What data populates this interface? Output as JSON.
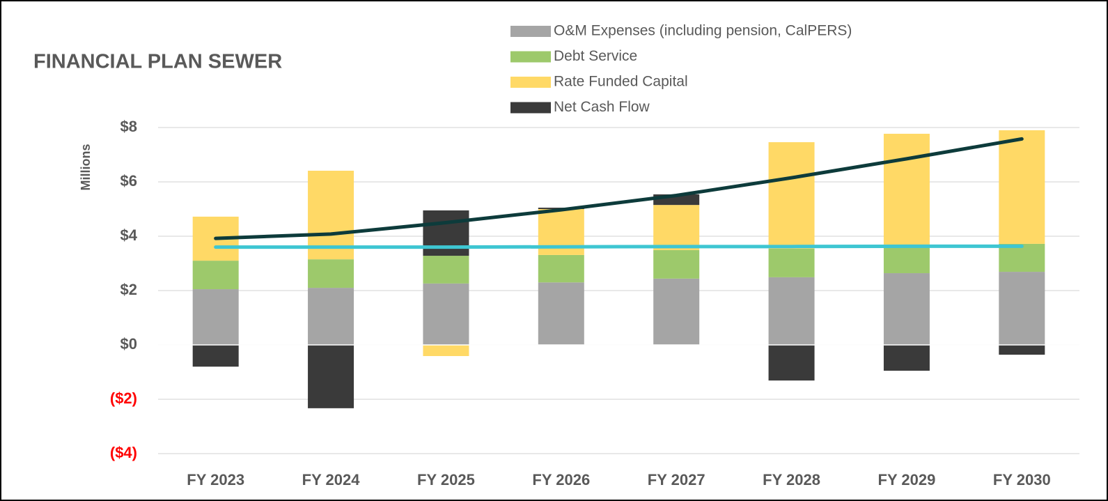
{
  "chart_data": {
    "type": "bar",
    "stacked": true,
    "title": "FINANCIAL PLAN SEWER",
    "y_label": "Millions",
    "categories": [
      "FY 2023",
      "FY 2024",
      "FY 2025",
      "FY 2026",
      "FY 2027",
      "FY 2028",
      "FY 2029",
      "FY 2030"
    ],
    "series": [
      {
        "name": "O&M Expenses (including pension, CalPERS)",
        "color": "#a5a5a5",
        "values": [
          2.05,
          2.1,
          2.26,
          2.3,
          2.44,
          2.49,
          2.64,
          2.69
        ]
      },
      {
        "name": "Debt Service",
        "color": "#9dc96b",
        "values": [
          1.05,
          1.05,
          1.02,
          1.01,
          1.05,
          1.05,
          0.96,
          1.03
        ]
      },
      {
        "name": "Rate Funded Capital",
        "color": "#ffd966",
        "values": [
          1.62,
          3.26,
          -0.41,
          1.69,
          1.66,
          3.92,
          4.17,
          4.18
        ]
      },
      {
        "name": "Net Cash Flow",
        "color": "#3a3a3a",
        "values": [
          -0.8,
          -2.33,
          1.67,
          0.05,
          0.39,
          -1.31,
          -0.95,
          -0.36
        ]
      }
    ],
    "lines": [
      {
        "color": "#0d3b3b",
        "values": [
          3.92,
          4.08,
          4.5,
          4.97,
          5.5,
          6.15,
          6.85,
          7.58
        ]
      },
      {
        "color": "#3ec6d2",
        "values": [
          3.6,
          3.6,
          3.6,
          3.61,
          3.62,
          3.62,
          3.63,
          3.63
        ]
      }
    ],
    "ylim": [
      -4,
      8
    ],
    "yticks": [
      {
        "value": -4,
        "label": "($4)"
      },
      {
        "value": -2,
        "label": "($2)"
      },
      {
        "value": 0,
        "label": "$0"
      },
      {
        "value": 2,
        "label": "$2"
      },
      {
        "value": 4,
        "label": "$4"
      },
      {
        "value": 6,
        "label": "$6"
      },
      {
        "value": 8,
        "label": "$8"
      }
    ],
    "negative_tick_color": "#ff0000",
    "grid": true
  }
}
